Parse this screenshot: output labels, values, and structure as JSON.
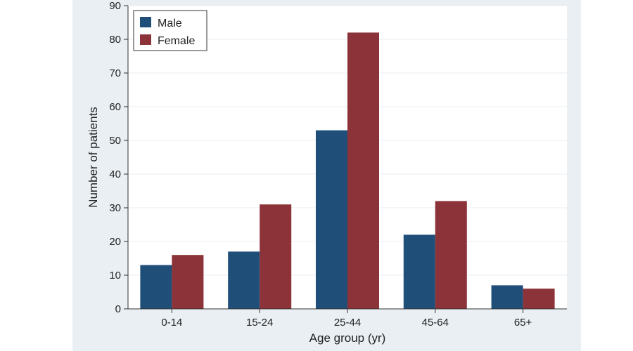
{
  "chart_data": {
    "type": "bar",
    "title": "",
    "xlabel": "Age group (yr)",
    "ylabel": "Number of patients",
    "categories": [
      "0-14",
      "15-24",
      "25-44",
      "45-64",
      "65+"
    ],
    "series": [
      {
        "name": "Male",
        "color": "#1f4e79",
        "values": [
          13,
          17,
          53,
          22,
          7
        ]
      },
      {
        "name": "Female",
        "color": "#8b3339",
        "values": [
          16,
          31,
          82,
          32,
          6
        ]
      }
    ],
    "ylim": [
      0,
      90
    ],
    "yticks": [
      0,
      10,
      20,
      30,
      40,
      50,
      60,
      70,
      80,
      90
    ],
    "grid": true,
    "legend_position": "top-left"
  }
}
